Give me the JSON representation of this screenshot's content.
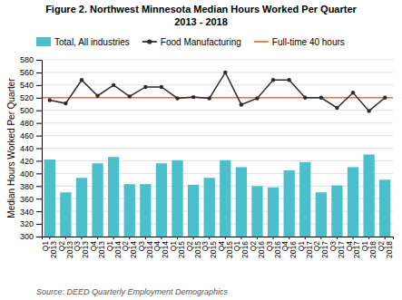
{
  "chart_data": {
    "type": "bar",
    "title": "Figure 2. Northwest Minnesota Median Hours Worked Per Quarter",
    "subtitle": "2013 - 2018",
    "y_label": "Median Hours Worked Per Quarter",
    "source": "Source: DEED Quarterly Employment Demographics",
    "categories": [
      "Q1\n2013",
      "Q2\n2013",
      "Q3\n2013",
      "Q4\n2013",
      "Q1\n2014",
      "Q2\n2014",
      "Q3\n2014",
      "Q4\n2014",
      "Q1\n2015",
      "Q2\n2015",
      "Q3\n2015",
      "Q4\n2015",
      "Q1\n2016",
      "Q2\n2016",
      "Q3\n2016",
      "Q4\n2016",
      "Q1\n2017",
      "Q2\n2017",
      "Q3\n2017",
      "Q4\n2017",
      "Q1\n2018",
      "Q2\n2018"
    ],
    "series": [
      {
        "name": "Total, All industries",
        "type": "bar",
        "color": "#4BBFCB",
        "values": [
          422,
          370,
          393,
          416,
          426,
          383,
          383,
          416,
          421,
          382,
          393,
          421,
          410,
          380,
          378,
          405,
          418,
          370,
          381,
          410,
          430,
          390
        ]
      },
      {
        "name": "Food Manufacturing",
        "type": "line",
        "color": "#2d2d2d",
        "marker": "circle",
        "values": [
          516,
          511,
          548,
          523,
          540,
          522,
          537,
          537,
          519,
          521,
          519,
          560,
          509,
          519,
          548,
          548,
          520,
          520,
          504,
          528,
          499,
          520
        ]
      },
      {
        "name": "Full-time 40 hours",
        "type": "hline",
        "color": "#E8714A",
        "value": 520
      }
    ],
    "ylim": [
      300,
      580
    ],
    "yticks": [
      300,
      320,
      340,
      360,
      380,
      400,
      420,
      440,
      460,
      480,
      500,
      520,
      540,
      560,
      580
    ],
    "grid": true,
    "legend": "top"
  }
}
